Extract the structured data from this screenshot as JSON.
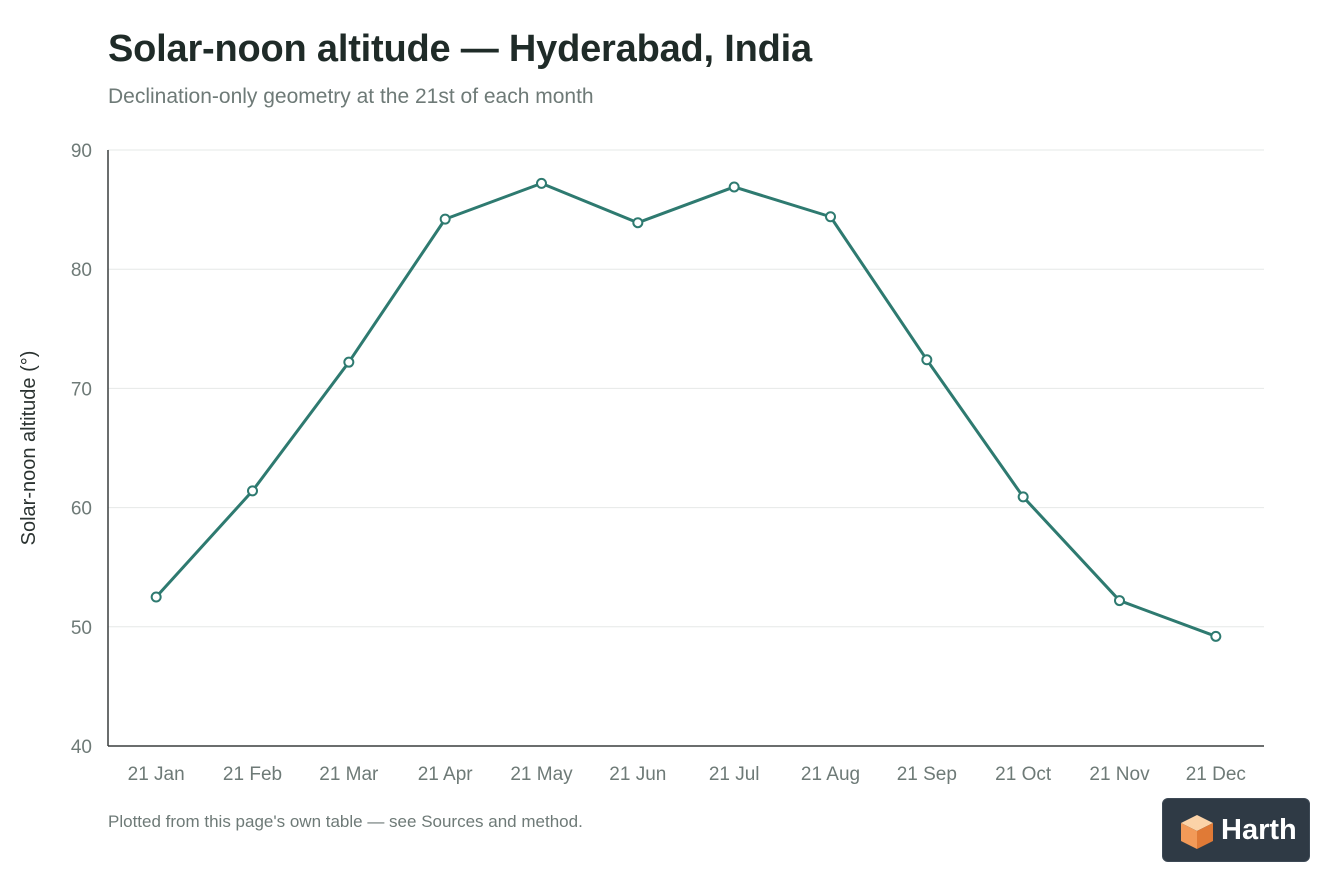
{
  "chart_data": {
    "type": "line",
    "title": "Solar-noon altitude — Hyderabad, India",
    "subtitle": "Declination-only geometry at the 21st of each month",
    "xlabel": "",
    "ylabel": "Solar-noon altitude (°)",
    "categories": [
      "21 Jan",
      "21 Feb",
      "21 Mar",
      "21 Apr",
      "21 May",
      "21 Jun",
      "21 Jul",
      "21 Aug",
      "21 Sep",
      "21 Oct",
      "21 Nov",
      "21 Dec"
    ],
    "values": [
      52.5,
      61.4,
      72.2,
      84.2,
      87.2,
      83.9,
      86.9,
      84.4,
      72.4,
      60.9,
      52.2,
      49.2
    ],
    "ylim": [
      40,
      90
    ],
    "yticks": [
      "40",
      "50",
      "60",
      "70",
      "80",
      "90"
    ],
    "grid": true,
    "legend": "none",
    "line_color": "#2e7a70",
    "grid_color": "#e6e8e7",
    "axis_color": "#3a3f3e",
    "text_color": "#6e7a77"
  },
  "footnote": "Plotted from this page's own table — see Sources and method.",
  "brand": {
    "name": "Harth",
    "icon": "harth-cube-logo"
  }
}
